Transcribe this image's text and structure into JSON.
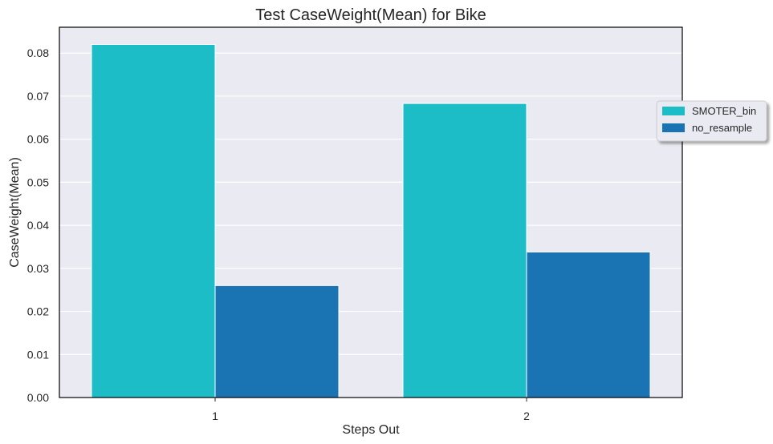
{
  "chart_data": {
    "type": "bar",
    "title": "Test CaseWeight(Mean) for Bike",
    "xlabel": "Steps Out",
    "ylabel": "CaseWeight(Mean)",
    "categories": [
      "1",
      "2"
    ],
    "series": [
      {
        "name": "SMOTER_bin",
        "values": [
          0.082,
          0.0683
        ],
        "color": "#1dbdc7"
      },
      {
        "name": "no_resample",
        "values": [
          0.026,
          0.0338
        ],
        "color": "#1a74b3"
      }
    ],
    "ylim": [
      0,
      0.086
    ],
    "yticks": [
      "0.00",
      "0.01",
      "0.02",
      "0.03",
      "0.04",
      "0.05",
      "0.06",
      "0.07",
      "0.08"
    ],
    "grid": true,
    "legend_position": "right, outside plot area",
    "plot_background": "#eaeaf2"
  }
}
